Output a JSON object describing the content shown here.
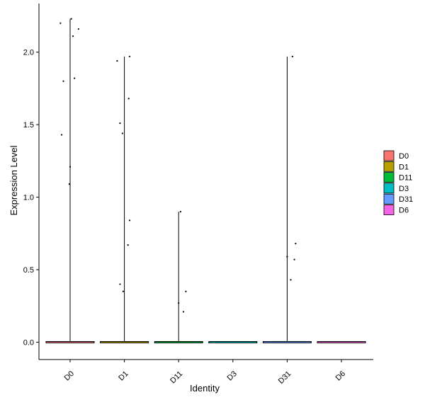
{
  "chart_data": {
    "type": "violin",
    "title": "",
    "xlabel": "Identity",
    "ylabel": "Expression Level",
    "ylim": [
      -0.12,
      2.3
    ],
    "yticks": [
      0.0,
      0.5,
      1.0,
      1.5,
      2.0
    ],
    "ytick_labels": [
      "0.0",
      "0.5",
      "1.0",
      "1.5",
      "2.0"
    ],
    "categories": [
      "D0",
      "D1",
      "D11",
      "D3",
      "D31",
      "D6"
    ],
    "colors": [
      "#F8766D",
      "#B79F00",
      "#00BA38",
      "#00BFC4",
      "#619CFF",
      "#F564E3"
    ],
    "legend": {
      "position": "right",
      "entries": [
        "D0",
        "D1",
        "D11",
        "D3",
        "D31",
        "D6"
      ]
    },
    "grid": false,
    "series": [
      {
        "category": "D0",
        "max": 2.23,
        "points": [
          [
            -0.4,
            2.2
          ],
          [
            0.05,
            2.23
          ],
          [
            0.12,
            2.11
          ],
          [
            0.35,
            2.16
          ],
          [
            -0.28,
            1.8
          ],
          [
            0.18,
            1.82
          ],
          [
            -0.35,
            1.43
          ],
          [
            0.0,
            1.21
          ],
          [
            -0.03,
            1.09
          ]
        ]
      },
      {
        "category": "D1",
        "max": 1.97,
        "points": [
          [
            -0.3,
            1.94
          ],
          [
            0.22,
            1.97
          ],
          [
            0.18,
            1.68
          ],
          [
            -0.18,
            1.51
          ],
          [
            -0.08,
            1.44
          ],
          [
            0.22,
            0.84
          ],
          [
            0.15,
            0.67
          ],
          [
            -0.18,
            0.4
          ],
          [
            -0.05,
            0.35
          ]
        ]
      },
      {
        "category": "D11",
        "max": 0.9,
        "points": [
          [
            0.08,
            0.9
          ],
          [
            0.3,
            0.35
          ],
          [
            0.0,
            0.27
          ],
          [
            0.2,
            0.21
          ]
        ]
      },
      {
        "category": "D3",
        "max": 0.0,
        "points": []
      },
      {
        "category": "D31",
        "max": 1.97,
        "points": [
          [
            0.22,
            1.97
          ],
          [
            0.0,
            0.59
          ],
          [
            0.35,
            0.68
          ],
          [
            0.3,
            0.57
          ],
          [
            0.15,
            0.43
          ]
        ]
      },
      {
        "category": "D6",
        "max": 0.0,
        "points": []
      }
    ]
  }
}
